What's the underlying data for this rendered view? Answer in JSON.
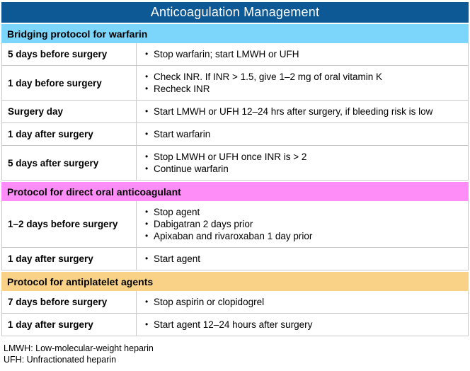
{
  "title": "Anticoagulation Management",
  "colors": {
    "title_bg": "#0d5996",
    "title_text": "#ffffff",
    "bridging_section_bg": "#7cd5fb",
    "doac_section_bg": "#ff8df8",
    "antiplatelet_section_bg": "#fad287",
    "border": "#c9c9c9",
    "body_text": "#000000"
  },
  "sections": [
    {
      "header": "Bridging protocol for warfarin",
      "bg": "#7cd5fb",
      "rows": [
        {
          "label": "5 days before surgery",
          "items": [
            "Stop warfarin; start LMWH or UFH"
          ]
        },
        {
          "label": "1 day before surgery",
          "items": [
            "Check INR. If INR > 1.5, give 1–2 mg of oral vitamin K",
            "Recheck INR"
          ]
        },
        {
          "label": "Surgery day",
          "items": [
            "Start LMWH or UFH 12–24 hrs after surgery, if bleeding risk is low"
          ]
        },
        {
          "label": "1 day after surgery",
          "items": [
            "Start warfarin"
          ]
        },
        {
          "label": "5 days after surgery",
          "items": [
            "Stop LMWH or UFH once INR is > 2",
            "Continue warfarin"
          ]
        }
      ]
    },
    {
      "header": "Protocol for direct oral anticoagulant",
      "bg": "#ff8df8",
      "rows": [
        {
          "label": "1–2 days before surgery",
          "items": [
            "Stop agent",
            "Dabigatran 2 days prior",
            "Apixaban and rivaroxaban 1 day prior"
          ]
        },
        {
          "label": "1 day after surgery",
          "items": [
            "Start agent"
          ]
        }
      ]
    },
    {
      "header": "Protocol for antiplatelet agents",
      "bg": "#fad287",
      "rows": [
        {
          "label": "7 days before surgery",
          "items": [
            "Stop aspirin or clopidogrel"
          ]
        },
        {
          "label": "1 day after surgery",
          "items": [
            "Start agent 12–24 hours after surgery"
          ]
        }
      ]
    }
  ],
  "footnotes": [
    "LMWH: Low-molecular-weight heparin",
    "UFH: Unfractionated heparin"
  ]
}
